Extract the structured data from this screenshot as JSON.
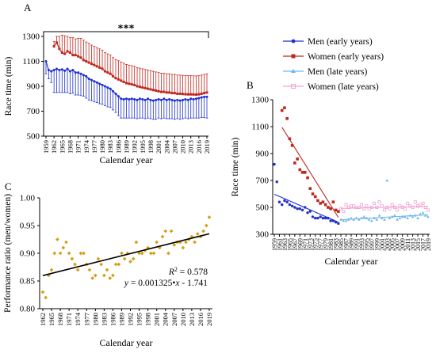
{
  "chart_data": [
    {
      "panel": "A",
      "type": "line",
      "title": "",
      "xlabel": "Calendar year",
      "ylabel": "Race time (min)",
      "ylim": [
        500,
        1300
      ],
      "yticks": [
        500,
        700,
        900,
        1100,
        1300
      ],
      "xticks": [
        1959,
        1962,
        1965,
        1968,
        1971,
        1974,
        1977,
        1980,
        1983,
        1986,
        1989,
        1992,
        1995,
        1998,
        2001,
        2004,
        2007,
        2010,
        2013,
        2016,
        2019
      ],
      "significance": "***",
      "series": [
        {
          "name": "Men (early years)",
          "color": "#1f2fd0",
          "x": [
            1959,
            1960,
            1961,
            1962,
            1963,
            1964,
            1965,
            1966,
            1967,
            1968,
            1969,
            1970,
            1971,
            1972,
            1973,
            1974,
            1975,
            1976,
            1977,
            1978,
            1979,
            1980,
            1981,
            1982,
            1983,
            1984,
            1985,
            1986,
            1987,
            1988,
            1989,
            1990,
            1991,
            1992,
            1993,
            1994,
            1995,
            1996,
            1997,
            1998,
            1999,
            2000,
            2001,
            2002,
            2003,
            2004,
            2005,
            2006,
            2007,
            2008,
            2009,
            2010,
            2011,
            2012,
            2013,
            2014,
            2015,
            2016,
            2017,
            2018,
            2019
          ],
          "mean": [
            1100,
            1030,
            1020,
            1030,
            1040,
            1030,
            1035,
            1025,
            1040,
            1020,
            1030,
            1010,
            1010,
            1000,
            990,
            980,
            960,
            950,
            940,
            930,
            920,
            910,
            900,
            890,
            880,
            860,
            840,
            820,
            800,
            795,
            800,
            795,
            800,
            795,
            790,
            800,
            795,
            790,
            800,
            790,
            785,
            790,
            795,
            790,
            800,
            790,
            795,
            790,
            785,
            790,
            785,
            790,
            795,
            790,
            800,
            795,
            800,
            805,
            810,
            815,
            815
          ],
          "sd": [
            100,
            70,
            90,
            180,
            190,
            180,
            185,
            175,
            190,
            180,
            185,
            180,
            180,
            175,
            170,
            175,
            170,
            165,
            165,
            160,
            160,
            155,
            155,
            155,
            150,
            150,
            150,
            155,
            155,
            150,
            155,
            150,
            155,
            150,
            150,
            155,
            150,
            150,
            155,
            150,
            150,
            155,
            150,
            150,
            155,
            150,
            155,
            150,
            150,
            150,
            150,
            150,
            150,
            150,
            155,
            150,
            155,
            160,
            160,
            165,
            170
          ]
        },
        {
          "name": "Women (early years)",
          "color": "#c0281f",
          "x": [
            1962,
            1963,
            1964,
            1965,
            1966,
            1967,
            1968,
            1969,
            1970,
            1971,
            1972,
            1973,
            1974,
            1975,
            1976,
            1977,
            1978,
            1979,
            1980,
            1981,
            1982,
            1983,
            1984,
            1985,
            1986,
            1987,
            1988,
            1989,
            1990,
            1991,
            1992,
            1993,
            1994,
            1995,
            1996,
            1997,
            1998,
            1999,
            2000,
            2001,
            2002,
            2003,
            2004,
            2005,
            2006,
            2007,
            2008,
            2009,
            2010,
            2011,
            2012,
            2013,
            2014,
            2015,
            2016,
            2017,
            2018,
            2019
          ],
          "mean": [
            1220,
            1250,
            1200,
            1170,
            1160,
            1180,
            1170,
            1150,
            1150,
            1140,
            1130,
            1110,
            1100,
            1090,
            1080,
            1070,
            1060,
            1050,
            1040,
            1020,
            1010,
            1000,
            980,
            965,
            955,
            945,
            935,
            925,
            920,
            915,
            910,
            900,
            895,
            890,
            885,
            880,
            875,
            870,
            865,
            860,
            855,
            855,
            850,
            850,
            845,
            845,
            840,
            840,
            838,
            836,
            835,
            835,
            834,
            833,
            835,
            840,
            845,
            850
          ],
          "sd": [
            40,
            50,
            100,
            140,
            145,
            120,
            120,
            140,
            130,
            145,
            155,
            160,
            155,
            155,
            150,
            150,
            150,
            150,
            150,
            150,
            150,
            150,
            150,
            150,
            150,
            150,
            150,
            150,
            150,
            150,
            150,
            150,
            150,
            150,
            150,
            150,
            150,
            150,
            150,
            150,
            150,
            150,
            150,
            150,
            150,
            150,
            150,
            150,
            150,
            150,
            150,
            150,
            150,
            150,
            150,
            150,
            150,
            150
          ]
        }
      ]
    },
    {
      "panel": "B",
      "type": "scatter",
      "title": "",
      "xlabel": "Calendar year",
      "ylabel": "Race time (min)",
      "ylim": [
        300,
        1300
      ],
      "yticks": [
        300,
        500,
        700,
        900,
        1100,
        1300
      ],
      "xticks": [
        1959,
        1961,
        1963,
        1965,
        1967,
        1969,
        1971,
        1973,
        1975,
        1977,
        1979,
        1981,
        1983,
        1985,
        1987,
        1989,
        1991,
        1993,
        1995,
        1997,
        1999,
        2001,
        2003,
        2005,
        2007,
        2009,
        2011,
        2013,
        2015,
        2017,
        2019
      ],
      "legend_position": "top",
      "series": [
        {
          "name": "Men (early years)",
          "color": "#1f2fd0",
          "x": [
            1959,
            1960,
            1961,
            1962,
            1963,
            1964,
            1965,
            1966,
            1967,
            1968,
            1969,
            1970,
            1971,
            1972,
            1973,
            1974,
            1975,
            1976,
            1977,
            1978,
            1979,
            1980,
            1981,
            1982,
            1983,
            1984
          ],
          "y": [
            820,
            690,
            540,
            520,
            550,
            540,
            520,
            510,
            500,
            490,
            490,
            480,
            500,
            460,
            470,
            430,
            420,
            420,
            430,
            420,
            420,
            420,
            400,
            400,
            390,
            380
          ],
          "fit": {
            "x": [
              1959,
              1984
            ],
            "y": [
              598,
              390
            ]
          }
        },
        {
          "name": "Women (early years)",
          "color": "#c0281f",
          "x": [
            1962,
            1963,
            1964,
            1965,
            1966,
            1967,
            1968,
            1969,
            1970,
            1971,
            1972,
            1973,
            1974,
            1975,
            1976,
            1977,
            1978,
            1979,
            1980,
            1981,
            1982,
            1983,
            1984
          ],
          "y": [
            1220,
            1240,
            1160,
            1010,
            960,
            830,
            860,
            780,
            760,
            760,
            720,
            640,
            600,
            580,
            550,
            530,
            540,
            520,
            500,
            490,
            540,
            480,
            470
          ],
          "fit": {
            "x": [
              1962,
              1984
            ],
            "y": [
              1095,
              425
            ]
          }
        },
        {
          "name": "Men (late years)",
          "color": "#6fb6ec",
          "x": [
            1985,
            1986,
            1987,
            1988,
            1989,
            1990,
            1991,
            1992,
            1993,
            1994,
            1995,
            1996,
            1997,
            1998,
            1999,
            2000,
            2001,
            2002,
            2003,
            2004,
            2005,
            2006,
            2007,
            2008,
            2009,
            2010,
            2011,
            2012,
            2013,
            2014,
            2015,
            2016,
            2017,
            2018,
            2019
          ],
          "y": [
            410,
            400,
            400,
            410,
            420,
            410,
            420,
            410,
            420,
            430,
            420,
            410,
            400,
            420,
            410,
            440,
            420,
            410,
            700,
            420,
            430,
            440,
            410,
            420,
            430,
            430,
            420,
            440,
            430,
            440,
            420,
            450,
            460,
            440,
            430
          ],
          "fit": {
            "x": [
              1985,
              2019
            ],
            "y": [
              408,
              445
            ]
          }
        },
        {
          "name": "Women (late years)",
          "color": "#f0a2d0",
          "x": [
            1985,
            1986,
            1987,
            1988,
            1989,
            1990,
            1991,
            1992,
            1993,
            1994,
            1995,
            1996,
            1997,
            1998,
            1999,
            2000,
            2001,
            2002,
            2003,
            2004,
            2005,
            2006,
            2007,
            2008,
            2009,
            2010,
            2011,
            2012,
            2013,
            2014,
            2015,
            2016,
            2017,
            2018,
            2019
          ],
          "y": [
            490,
            470,
            520,
            500,
            510,
            510,
            500,
            500,
            520,
            490,
            510,
            490,
            500,
            530,
            500,
            540,
            510,
            480,
            500,
            490,
            520,
            500,
            480,
            510,
            500,
            490,
            530,
            510,
            500,
            540,
            510,
            520,
            530,
            500,
            480
          ],
          "fit": {
            "x": [
              1985,
              2019
            ],
            "y": [
              492,
              508
            ]
          }
        }
      ]
    },
    {
      "panel": "C",
      "type": "scatter",
      "title": "",
      "xlabel": "Calendar year",
      "ylabel": "Performance ratio (men/women)",
      "ylim": [
        0.8,
        1.0
      ],
      "yticks": [
        "0.80",
        "0.85",
        "0.90",
        "0.95",
        "1.00"
      ],
      "xticks": [
        1962,
        1965,
        1968,
        1971,
        1974,
        1977,
        1980,
        1983,
        1986,
        1989,
        1992,
        1995,
        1998,
        2001,
        2004,
        2007,
        2010,
        2013,
        2016,
        2019
      ],
      "annotation_r2_label": "R",
      "annotation_r2_sup": "2",
      "annotation_r2_value": " = 0.578",
      "annotation_eq_y": "y",
      "annotation_eq_mid": " = 0.001325•",
      "annotation_eq_x": "x",
      "annotation_eq_tail": " - 1.741",
      "series": [
        {
          "color": "#d4a017",
          "x": [
            1962,
            1963,
            1964,
            1965,
            1966,
            1967,
            1968,
            1969,
            1970,
            1971,
            1972,
            1973,
            1974,
            1975,
            1976,
            1977,
            1978,
            1979,
            1980,
            1981,
            1982,
            1983,
            1984,
            1985,
            1986,
            1987,
            1988,
            1989,
            1990,
            1991,
            1992,
            1993,
            1994,
            1995,
            1996,
            1997,
            1998,
            1999,
            2000,
            2001,
            2002,
            2003,
            2004,
            2005,
            2006,
            2007,
            2008,
            2009,
            2010,
            2011,
            2012,
            2013,
            2014,
            2015,
            2016,
            2017,
            2018,
            2019
          ],
          "y": [
            0.83,
            0.82,
            0.86,
            0.87,
            0.9,
            0.925,
            0.9,
            0.91,
            0.92,
            0.9,
            0.89,
            0.88,
            0.87,
            0.9,
            0.9,
            0.88,
            0.87,
            0.855,
            0.86,
            0.89,
            0.88,
            0.86,
            0.87,
            0.855,
            0.86,
            0.88,
            0.88,
            0.9,
            0.89,
            0.9,
            0.885,
            0.89,
            0.92,
            0.9,
            0.9,
            0.905,
            0.91,
            0.9,
            0.9,
            0.92,
            0.91,
            0.93,
            0.94,
            0.9,
            0.94,
            0.915,
            0.92,
            0.92,
            0.91,
            0.92,
            0.925,
            0.93,
            0.92,
            0.935,
            0.93,
            0.94,
            0.95,
            0.965
          ],
          "fit": {
            "x": [
              1962,
              2019
            ],
            "y": [
              0.8597,
              0.9352
            ]
          }
        }
      ]
    }
  ]
}
